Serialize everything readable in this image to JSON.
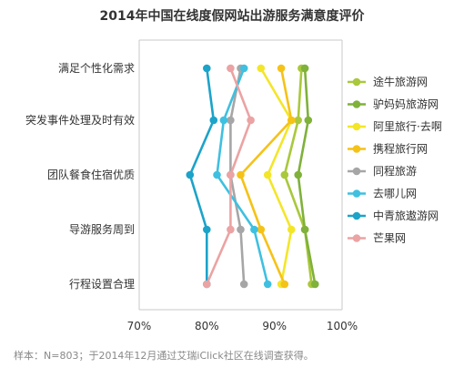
{
  "chart_data": {
    "type": "line",
    "title": "2014年中国在线度假网站出游服务满意度评价",
    "categories": [
      "满足个性化需求",
      "突发事件处理及时有效",
      "团队餐食住宿优质",
      "导游服务周到",
      "行程设置合理"
    ],
    "x_ticks": [
      "70%",
      "80%",
      "90%",
      "100%"
    ],
    "xlim": [
      70,
      100
    ],
    "series": [
      {
        "name": "途牛旅游网",
        "color": "#a9c83c",
        "values": [
          94.0,
          93.5,
          91.5,
          94.5,
          95.5
        ]
      },
      {
        "name": "驴妈妈旅游网",
        "color": "#7fb13b",
        "values": [
          94.5,
          95.0,
          93.5,
          94.5,
          96.0
        ]
      },
      {
        "name": "阿里旅行·去啊",
        "color": "#f3e629",
        "values": [
          88.0,
          92.5,
          89.0,
          92.5,
          91.0
        ]
      },
      {
        "name": "携程旅行网",
        "color": "#f5c218",
        "values": [
          91.0,
          92.5,
          85.0,
          88.0,
          91.5
        ]
      },
      {
        "name": "同程旅游",
        "color": "#a6a6a6",
        "values": [
          85.0,
          83.5,
          83.5,
          85.0,
          85.5
        ]
      },
      {
        "name": "去哪儿网",
        "color": "#3fc0e0",
        "values": [
          85.5,
          82.5,
          81.5,
          87.0,
          89.0
        ]
      },
      {
        "name": "中青旅遨游网",
        "color": "#1ca3c9",
        "values": [
          80.0,
          81.0,
          77.5,
          80.0,
          80.0
        ]
      },
      {
        "name": "芒果网",
        "color": "#eba3a3",
        "values": [
          83.5,
          86.5,
          83.5,
          83.5,
          80.0
        ]
      }
    ],
    "grid": false,
    "legend_position": "right"
  },
  "footnote": "样本：N=803；于2014年12月通过艾瑞iClick社区在线调查获得。"
}
